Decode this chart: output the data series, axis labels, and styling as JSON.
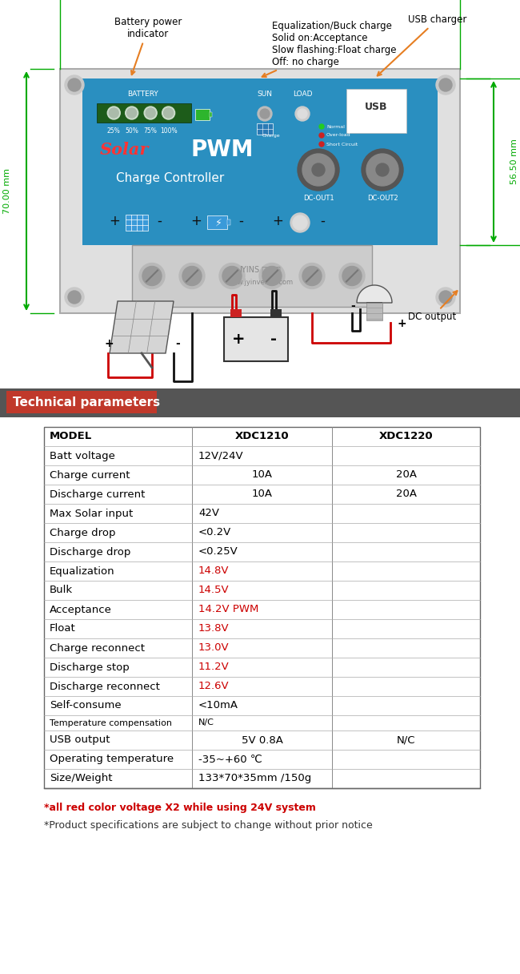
{
  "bg_color": "#ffffff",
  "title_bar_color": "#c0392b",
  "title_bar_bg": "#555555",
  "title_bar_text": "Technical parameters",
  "title_text_color": "#ffffff",
  "table_rows": [
    {
      "label": "MODEL",
      "col1": "XDC1210",
      "col2": "XDC1220",
      "label_bold": true,
      "col1_color": "#000000",
      "col2_color": "#000000",
      "span": false,
      "header": true
    },
    {
      "label": "Batt voltage",
      "col1": "12V/24V",
      "col2": "",
      "label_bold": false,
      "col1_color": "#000000",
      "col2_color": "#000000",
      "span": true
    },
    {
      "label": "Charge current",
      "col1": "10A",
      "col2": "20A",
      "label_bold": false,
      "col1_color": "#000000",
      "col2_color": "#000000",
      "span": false
    },
    {
      "label": "Discharge current",
      "col1": "10A",
      "col2": "20A",
      "label_bold": false,
      "col1_color": "#000000",
      "col2_color": "#000000",
      "span": false
    },
    {
      "label": "Max Solar input",
      "col1": "42V",
      "col2": "",
      "label_bold": false,
      "col1_color": "#000000",
      "col2_color": "#000000",
      "span": true
    },
    {
      "label": "Charge drop",
      "col1": "<0.2V",
      "col2": "",
      "label_bold": false,
      "col1_color": "#000000",
      "col2_color": "#000000",
      "span": true
    },
    {
      "label": "Discharge drop",
      "col1": "<0.25V",
      "col2": "",
      "label_bold": false,
      "col1_color": "#000000",
      "col2_color": "#000000",
      "span": true
    },
    {
      "label": "Equalization",
      "col1": "14.8V",
      "col2": "",
      "label_bold": false,
      "col1_color": "#cc0000",
      "col2_color": "#000000",
      "span": true
    },
    {
      "label": "Bulk",
      "col1": "14.5V",
      "col2": "",
      "label_bold": false,
      "col1_color": "#cc0000",
      "col2_color": "#000000",
      "span": true
    },
    {
      "label": "Acceptance",
      "col1": "14.2V PWM",
      "col2": "",
      "label_bold": false,
      "col1_color": "#cc0000",
      "col2_color": "#000000",
      "span": true
    },
    {
      "label": "Float",
      "col1": "13.8V",
      "col2": "",
      "label_bold": false,
      "col1_color": "#cc0000",
      "col2_color": "#000000",
      "span": true
    },
    {
      "label": "Charge reconnect",
      "col1": "13.0V",
      "col2": "",
      "label_bold": false,
      "col1_color": "#cc0000",
      "col2_color": "#000000",
      "span": true
    },
    {
      "label": "Discharge stop",
      "col1": "11.2V",
      "col2": "",
      "label_bold": false,
      "col1_color": "#cc0000",
      "col2_color": "#000000",
      "span": true
    },
    {
      "label": "Discharge reconnect",
      "col1": "12.6V",
      "col2": "",
      "label_bold": false,
      "col1_color": "#cc0000",
      "col2_color": "#000000",
      "span": true
    },
    {
      "label": "Self-consume",
      "col1": "<10mA",
      "col2": "",
      "label_bold": false,
      "col1_color": "#000000",
      "col2_color": "#000000",
      "span": true
    },
    {
      "label": "Temperature compensation",
      "col1": "N/C",
      "col2": "",
      "label_bold": false,
      "col1_color": "#000000",
      "col2_color": "#000000",
      "span": true,
      "small": true
    },
    {
      "label": "USB output",
      "col1": "5V 0.8A",
      "col2": "N/C",
      "label_bold": false,
      "col1_color": "#000000",
      "col2_color": "#000000",
      "span": false
    },
    {
      "label": "Operating temperature",
      "col1": "-35~+60 ℃",
      "col2": "",
      "label_bold": false,
      "col1_color": "#000000",
      "col2_color": "#000000",
      "span": true
    },
    {
      "label": "Size/Weight",
      "col1": "133*70*35mm /150g",
      "col2": "",
      "label_bold": false,
      "col1_color": "#000000",
      "col2_color": "#000000",
      "span": true
    }
  ],
  "footer1": "*all red color voltage X2 while using 24V system",
  "footer2": "*Product specifications are subject to change without prior notice",
  "footer1_color": "#cc0000",
  "footer2_color": "#333333",
  "dim_color": "#00aa00",
  "arrow_color": "#e67e22",
  "controller_blue": "#2980b9",
  "wire_red": "#cc0000",
  "wire_black": "#111111",
  "ann_battery": "Battery power\nindicator",
  "ann_equal": "Equalization/Buck charge\nSolid on:Acceptance\nSlow flashing:Float charge\nOff: no charge",
  "ann_usb": "USB charger",
  "ann_dc": "DC output",
  "dim_70": "70.00 mm",
  "dim_56": "56.50 mm"
}
